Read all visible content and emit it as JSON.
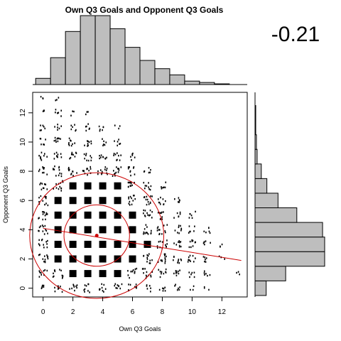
{
  "chart_data": {
    "type": "scatter",
    "title": "Own Q3 Goals and Opponent Q3 Goals",
    "correlation_label": "-0.21",
    "xlabel": "Own Q3 Goals",
    "ylabel": "Opponent Q3 Goals",
    "xlim": [
      -0.7,
      13.7
    ],
    "ylim": [
      -0.6,
      13.4
    ],
    "x_ticks": [
      0,
      2,
      4,
      6,
      8,
      10,
      12
    ],
    "y_ticks": [
      0,
      2,
      4,
      6,
      8,
      10,
      12
    ],
    "grid": false,
    "top_histogram": {
      "bins": [
        0,
        1,
        2,
        3,
        4,
        5,
        6,
        7,
        8,
        9,
        10,
        11,
        12,
        13
      ],
      "relative_heights": [
        0.09,
        0.39,
        0.77,
        1.0,
        1.0,
        0.81,
        0.54,
        0.35,
        0.23,
        0.14,
        0.05,
        0.03,
        0.01
      ]
    },
    "right_histogram": {
      "bins": [
        0,
        1,
        2,
        3,
        4,
        5,
        6,
        7,
        8,
        9,
        10,
        11,
        12,
        13
      ],
      "relative_widths": [
        0.16,
        0.44,
        1.0,
        1.0,
        0.97,
        0.6,
        0.33,
        0.17,
        0.09,
        0.03,
        0.02,
        0.01,
        0.01
      ]
    },
    "scatter_density": [
      {
        "x": 0,
        "y": 13,
        "n": 1
      },
      {
        "x": 1,
        "y": 13,
        "n": 1
      },
      {
        "x": 0,
        "y": 12,
        "n": 1
      },
      {
        "x": 1,
        "y": 12,
        "n": 2
      },
      {
        "x": 2,
        "y": 12,
        "n": 1
      },
      {
        "x": 3,
        "y": 12,
        "n": 1
      },
      {
        "x": 0,
        "y": 11,
        "n": 2
      },
      {
        "x": 1,
        "y": 11,
        "n": 2
      },
      {
        "x": 2,
        "y": 11,
        "n": 2
      },
      {
        "x": 3,
        "y": 11,
        "n": 2
      },
      {
        "x": 4,
        "y": 11,
        "n": 2
      },
      {
        "x": 5,
        "y": 11,
        "n": 1
      },
      {
        "x": 0,
        "y": 10,
        "n": 2
      },
      {
        "x": 1,
        "y": 10,
        "n": 3
      },
      {
        "x": 2,
        "y": 10,
        "n": 3
      },
      {
        "x": 3,
        "y": 10,
        "n": 3
      },
      {
        "x": 4,
        "y": 10,
        "n": 2
      },
      {
        "x": 5,
        "y": 10,
        "n": 2
      },
      {
        "x": 0,
        "y": 9,
        "n": 3
      },
      {
        "x": 1,
        "y": 9,
        "n": 3
      },
      {
        "x": 2,
        "y": 9,
        "n": 3
      },
      {
        "x": 3,
        "y": 9,
        "n": 3
      },
      {
        "x": 4,
        "y": 9,
        "n": 3
      },
      {
        "x": 5,
        "y": 9,
        "n": 3
      },
      {
        "x": 6,
        "y": 9,
        "n": 2
      },
      {
        "x": 0,
        "y": 8,
        "n": 3
      },
      {
        "x": 1,
        "y": 8,
        "n": 4
      },
      {
        "x": 2,
        "y": 8,
        "n": 4
      },
      {
        "x": 3,
        "y": 8,
        "n": 4
      },
      {
        "x": 4,
        "y": 8,
        "n": 4
      },
      {
        "x": 5,
        "y": 8,
        "n": 4
      },
      {
        "x": 6,
        "y": 8,
        "n": 3
      },
      {
        "x": 7,
        "y": 8,
        "n": 2
      },
      {
        "x": 0,
        "y": 7,
        "n": 3
      },
      {
        "x": 1,
        "y": 7,
        "n": 4
      },
      {
        "x": 2,
        "y": 7,
        "n": 5
      },
      {
        "x": 3,
        "y": 7,
        "n": 5
      },
      {
        "x": 4,
        "y": 7,
        "n": 5
      },
      {
        "x": 5,
        "y": 7,
        "n": 5
      },
      {
        "x": 6,
        "y": 7,
        "n": 4
      },
      {
        "x": 7,
        "y": 7,
        "n": 3
      },
      {
        "x": 8,
        "y": 7,
        "n": 2
      },
      {
        "x": 0,
        "y": 6,
        "n": 4
      },
      {
        "x": 1,
        "y": 6,
        "n": 5
      },
      {
        "x": 2,
        "y": 6,
        "n": 5
      },
      {
        "x": 3,
        "y": 6,
        "n": 5
      },
      {
        "x": 4,
        "y": 6,
        "n": 5
      },
      {
        "x": 5,
        "y": 6,
        "n": 5
      },
      {
        "x": 6,
        "y": 6,
        "n": 4
      },
      {
        "x": 7,
        "y": 6,
        "n": 4
      },
      {
        "x": 8,
        "y": 6,
        "n": 3
      },
      {
        "x": 9,
        "y": 6,
        "n": 2
      },
      {
        "x": 0,
        "y": 5,
        "n": 4
      },
      {
        "x": 1,
        "y": 5,
        "n": 5
      },
      {
        "x": 2,
        "y": 5,
        "n": 5
      },
      {
        "x": 3,
        "y": 5,
        "n": 5
      },
      {
        "x": 4,
        "y": 5,
        "n": 5
      },
      {
        "x": 5,
        "y": 5,
        "n": 5
      },
      {
        "x": 6,
        "y": 5,
        "n": 5
      },
      {
        "x": 7,
        "y": 5,
        "n": 4
      },
      {
        "x": 8,
        "y": 5,
        "n": 3
      },
      {
        "x": 9,
        "y": 5,
        "n": 2
      },
      {
        "x": 10,
        "y": 5,
        "n": 2
      },
      {
        "x": 0,
        "y": 4,
        "n": 4
      },
      {
        "x": 1,
        "y": 4,
        "n": 5
      },
      {
        "x": 2,
        "y": 4,
        "n": 5
      },
      {
        "x": 3,
        "y": 4,
        "n": 5
      },
      {
        "x": 4,
        "y": 4,
        "n": 5
      },
      {
        "x": 5,
        "y": 4,
        "n": 5
      },
      {
        "x": 6,
        "y": 4,
        "n": 5
      },
      {
        "x": 7,
        "y": 4,
        "n": 4
      },
      {
        "x": 8,
        "y": 4,
        "n": 4
      },
      {
        "x": 9,
        "y": 4,
        "n": 3
      },
      {
        "x": 10,
        "y": 4,
        "n": 2
      },
      {
        "x": 11,
        "y": 4,
        "n": 2
      },
      {
        "x": 0,
        "y": 3,
        "n": 4
      },
      {
        "x": 1,
        "y": 3,
        "n": 5
      },
      {
        "x": 2,
        "y": 3,
        "n": 5
      },
      {
        "x": 3,
        "y": 3,
        "n": 5
      },
      {
        "x": 4,
        "y": 3,
        "n": 5
      },
      {
        "x": 5,
        "y": 3,
        "n": 5
      },
      {
        "x": 6,
        "y": 3,
        "n": 5
      },
      {
        "x": 7,
        "y": 3,
        "n": 5
      },
      {
        "x": 8,
        "y": 3,
        "n": 4
      },
      {
        "x": 9,
        "y": 3,
        "n": 3
      },
      {
        "x": 10,
        "y": 3,
        "n": 3
      },
      {
        "x": 11,
        "y": 3,
        "n": 2
      },
      {
        "x": 12,
        "y": 3,
        "n": 1
      },
      {
        "x": 0,
        "y": 2,
        "n": 4
      },
      {
        "x": 1,
        "y": 2,
        "n": 5
      },
      {
        "x": 2,
        "y": 2,
        "n": 5
      },
      {
        "x": 3,
        "y": 2,
        "n": 5
      },
      {
        "x": 4,
        "y": 2,
        "n": 5
      },
      {
        "x": 5,
        "y": 2,
        "n": 5
      },
      {
        "x": 6,
        "y": 2,
        "n": 5
      },
      {
        "x": 7,
        "y": 2,
        "n": 4
      },
      {
        "x": 8,
        "y": 2,
        "n": 4
      },
      {
        "x": 9,
        "y": 2,
        "n": 3
      },
      {
        "x": 10,
        "y": 2,
        "n": 3
      },
      {
        "x": 11,
        "y": 2,
        "n": 2
      },
      {
        "x": 12,
        "y": 2,
        "n": 1
      },
      {
        "x": 0,
        "y": 1,
        "n": 3
      },
      {
        "x": 1,
        "y": 1,
        "n": 4
      },
      {
        "x": 2,
        "y": 1,
        "n": 5
      },
      {
        "x": 3,
        "y": 1,
        "n": 5
      },
      {
        "x": 4,
        "y": 1,
        "n": 5
      },
      {
        "x": 5,
        "y": 1,
        "n": 5
      },
      {
        "x": 6,
        "y": 1,
        "n": 4
      },
      {
        "x": 7,
        "y": 1,
        "n": 4
      },
      {
        "x": 8,
        "y": 1,
        "n": 3
      },
      {
        "x": 9,
        "y": 1,
        "n": 3
      },
      {
        "x": 10,
        "y": 1,
        "n": 2
      },
      {
        "x": 11,
        "y": 1,
        "n": 2
      },
      {
        "x": 13,
        "y": 1,
        "n": 1
      },
      {
        "x": 0,
        "y": 0,
        "n": 2
      },
      {
        "x": 1,
        "y": 0,
        "n": 3
      },
      {
        "x": 2,
        "y": 0,
        "n": 3
      },
      {
        "x": 3,
        "y": 0,
        "n": 3
      },
      {
        "x": 4,
        "y": 0,
        "n": 3
      },
      {
        "x": 5,
        "y": 0,
        "n": 3
      },
      {
        "x": 6,
        "y": 0,
        "n": 3
      },
      {
        "x": 7,
        "y": 0,
        "n": 2
      },
      {
        "x": 8,
        "y": 0,
        "n": 2
      },
      {
        "x": 9,
        "y": 0,
        "n": 2
      },
      {
        "x": 10,
        "y": 0,
        "n": 1
      },
      {
        "x": 11,
        "y": 0,
        "n": 1
      }
    ],
    "center_point": {
      "x": 3.6,
      "y": 3.6
    },
    "regression_line": {
      "x": [
        0,
        13.3
      ],
      "y": [
        4.1,
        1.9
      ]
    },
    "ellipses": [
      {
        "cx": 3.6,
        "cy": 3.6,
        "rx": 2.2,
        "ry": 2.1
      },
      {
        "cx": 3.6,
        "cy": 3.6,
        "rx": 4.5,
        "ry": 4.3
      }
    ],
    "colors": {
      "points": "#000000",
      "bars": "#bebebe",
      "bar_outline": "#000000",
      "fit": "#cc0000",
      "frame": "#000000"
    }
  }
}
